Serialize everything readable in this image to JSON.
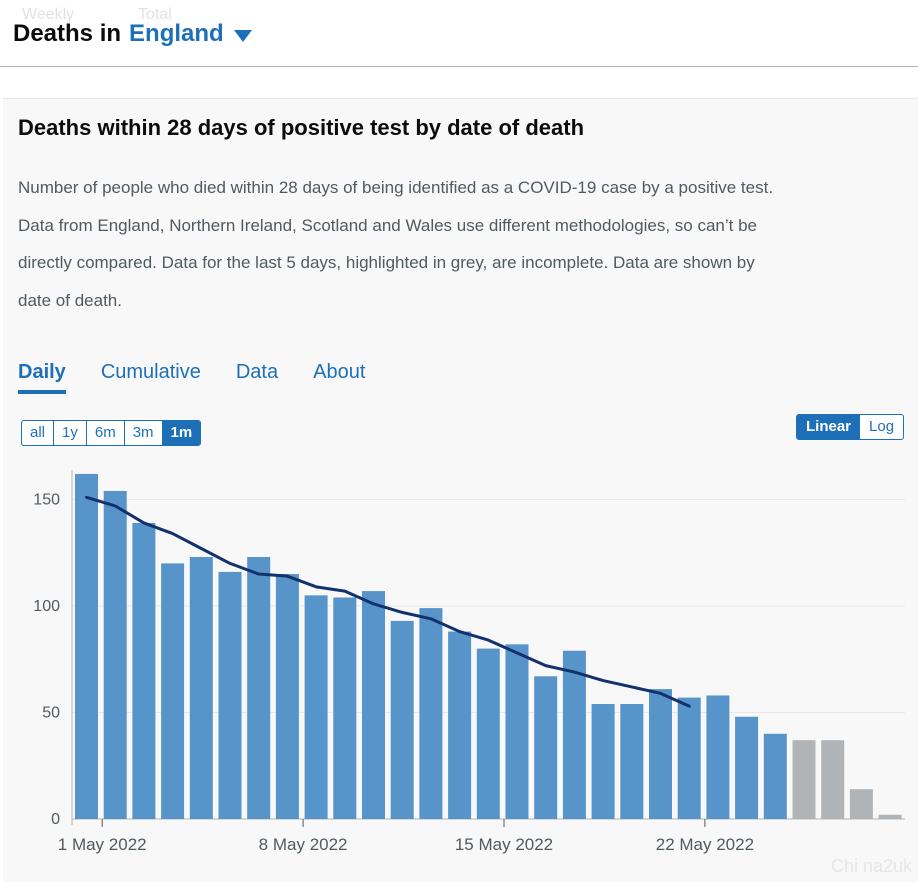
{
  "header": {
    "ghost_weekly": "Weekly",
    "ghost_total": "Total",
    "title_prefix": "Deaths in",
    "area": "England"
  },
  "card": {
    "title": "Deaths within 28 days of positive test by date of death",
    "description": "Number of people who died within 28 days of being identified as a COVID-19 case by a positive test. Data from England, Northern Ireland, Scotland and Wales use different methodologies, so can’t be directly compared. Data for the last 5 days, highlighted in grey, are incomplete. Data are shown by date of death.",
    "tabs": [
      {
        "label": "Daily",
        "active": true
      },
      {
        "label": "Cumulative",
        "active": false
      },
      {
        "label": "Data",
        "active": false
      },
      {
        "label": "About",
        "active": false
      }
    ],
    "range_options": [
      "all",
      "1y",
      "6m",
      "3m",
      "1m"
    ],
    "range_selected": "1m",
    "scale_options": [
      "Linear",
      "Log"
    ],
    "scale_selected": "Linear"
  },
  "colors": {
    "bar_complete": "#5694ca",
    "bar_incomplete": "#b1b4b6",
    "line": "#12326e",
    "accent": "#1d70b8"
  },
  "watermark": "Chi na2uk",
  "chart_data": {
    "type": "bar",
    "x_tick_labels": [
      "1 May 2022",
      "8 May 2022",
      "15 May 2022",
      "22 May 2022"
    ],
    "x_tick_index": [
      1,
      8,
      15,
      22
    ],
    "categories": [
      "2022-04-30",
      "2022-05-01",
      "2022-05-02",
      "2022-05-03",
      "2022-05-04",
      "2022-05-05",
      "2022-05-06",
      "2022-05-07",
      "2022-05-08",
      "2022-05-09",
      "2022-05-10",
      "2022-05-11",
      "2022-05-12",
      "2022-05-13",
      "2022-05-14",
      "2022-05-15",
      "2022-05-16",
      "2022-05-17",
      "2022-05-18",
      "2022-05-19",
      "2022-05-20",
      "2022-05-21",
      "2022-05-22",
      "2022-05-23",
      "2022-05-24",
      "2022-05-25",
      "2022-05-26",
      "2022-05-27",
      "2022-05-28"
    ],
    "values": [
      162,
      154,
      139,
      120,
      123,
      116,
      123,
      115,
      105,
      104,
      107,
      93,
      99,
      88,
      80,
      82,
      67,
      79,
      54,
      54,
      61,
      57,
      58,
      48,
      40,
      37,
      37,
      14,
      2
    ],
    "incomplete_from_index": 25,
    "rolling_average": [
      151,
      147,
      139,
      134,
      127,
      120,
      115,
      114,
      109,
      107,
      101,
      97,
      94,
      88,
      84,
      78,
      72,
      69,
      65,
      62,
      59,
      53
    ],
    "y_ticks": [
      0,
      50,
      100,
      150
    ],
    "ylim": [
      0,
      165
    ],
    "grid": true
  }
}
